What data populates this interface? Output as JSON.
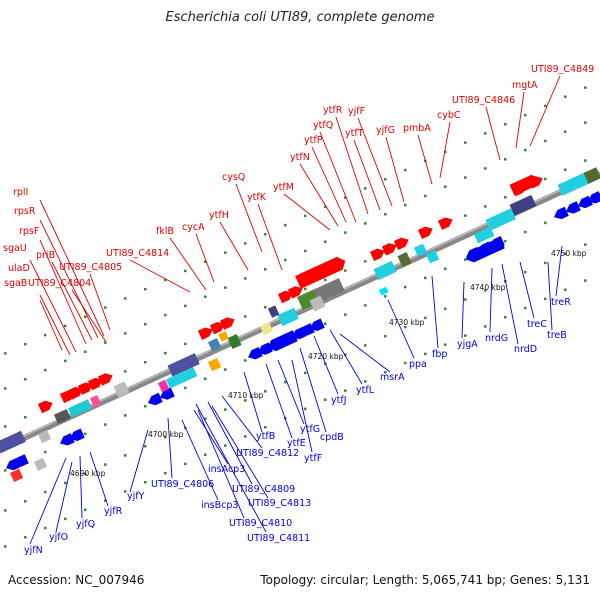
{
  "title": "Escherichia coli UTI89, complete genome",
  "accession": "Accession: NC_007946",
  "topology": "Topology: circular; Length: 5,065,741 bp; Genes: 5,131",
  "colors": {
    "forward": "#ff0000",
    "reverse": "#0000ff",
    "axis": "#888888"
  },
  "ticks": [
    "4690 kbp",
    "4700 kbp",
    "4710 kbp",
    "4720 kbp",
    "4730 kbp",
    "4740 kbp",
    "4750 kbp"
  ],
  "top_labels": [
    "sgaB",
    "ulaD",
    "sgaU",
    "rpsF",
    "priB",
    "rpsR",
    "rplI",
    "UTI89_C4804",
    "UTI89_C4805",
    "UTI89_C4814",
    "fklB",
    "cycA",
    "ytfH",
    "cysQ",
    "ytfK",
    "ytfM",
    "ytfN",
    "ytfP",
    "ytfQ",
    "ytfR",
    "ytfT",
    "yjfF",
    "yjfG",
    "pmbA",
    "cybC",
    "UTI89_C4846",
    "mgtA",
    "UTI89_C4849"
  ],
  "bottom_labels": [
    "yjfN",
    "yjfO",
    "yjfQ",
    "yjfR",
    "yjfY",
    "UTI89_C4806",
    "insBcp3",
    "insAcp3",
    "UTI89_C4810",
    "UTI89_C4809",
    "UTI89_C4812",
    "UTI89_C4811",
    "UTI89_C4813",
    "ytfB",
    "ytfE",
    "ytfG",
    "ytfF",
    "cpdB",
    "ytfJ",
    "ytfL",
    "msrA",
    "ppa",
    "fbp",
    "yjgA",
    "nrdG",
    "nrdD",
    "treC",
    "treB",
    "treR"
  ]
}
